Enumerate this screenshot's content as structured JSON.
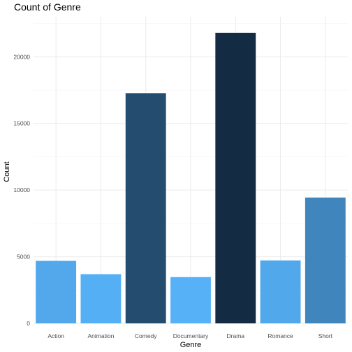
{
  "chart_data": {
    "type": "bar",
    "title": "Count of Genre",
    "xlabel": "Genre",
    "ylabel": "Count",
    "categories": [
      "Action",
      "Animation",
      "Comedy",
      "Documentary",
      "Drama",
      "Romance",
      "Short"
    ],
    "values": [
      4690,
      3690,
      17270,
      3470,
      21800,
      4720,
      9440
    ],
    "ylim": [
      0,
      23000
    ],
    "yticks": [
      0,
      5000,
      10000,
      15000,
      20000
    ],
    "grid": true,
    "legend": "none",
    "fill_gradient": {
      "low": "#56b1f7",
      "high": "#132b43"
    }
  }
}
